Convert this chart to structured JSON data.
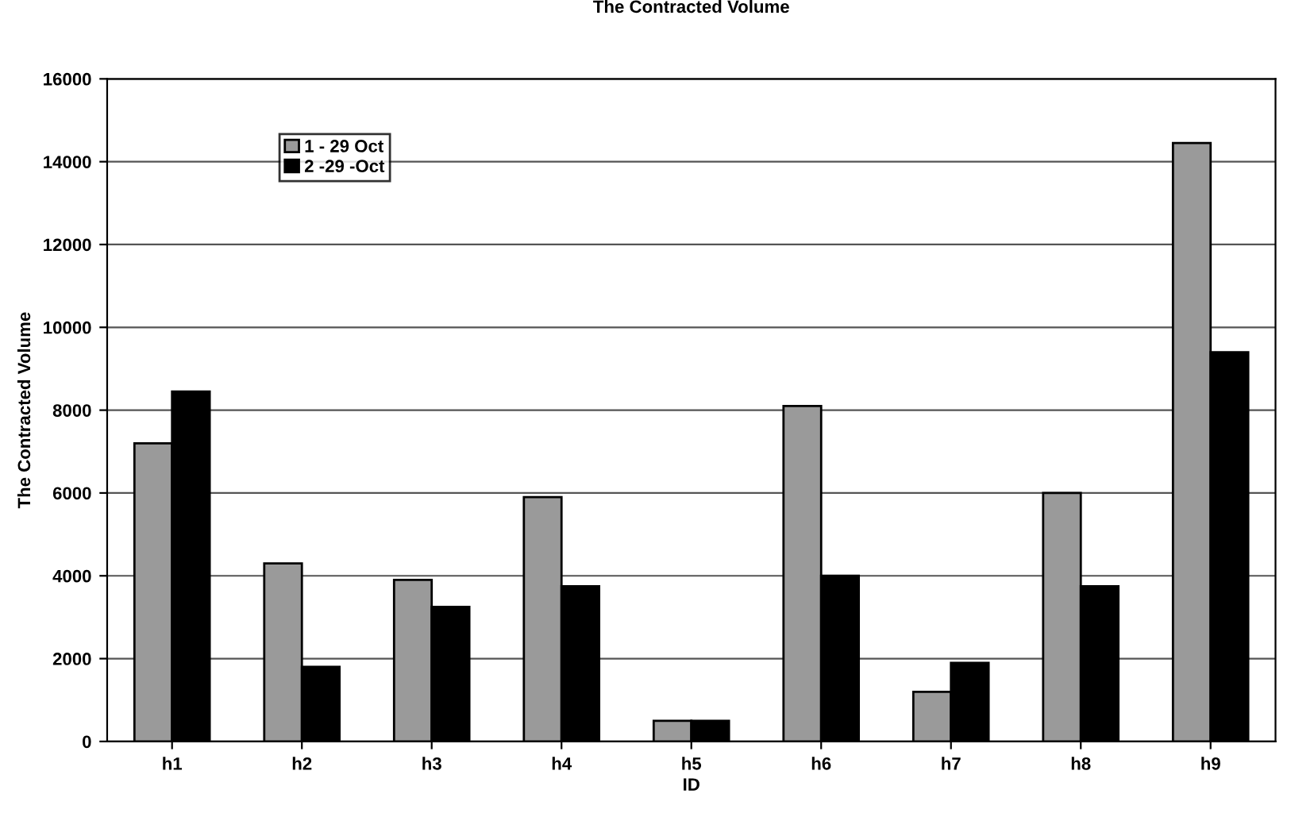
{
  "chart_data": {
    "type": "bar",
    "title": "The Contracted Volume",
    "xlabel": "ID",
    "ylabel": "The Contracted Volume",
    "categories": [
      "h1",
      "h2",
      "h3",
      "h4",
      "h5",
      "h6",
      "h7",
      "h8",
      "h9"
    ],
    "series": [
      {
        "name": "1 - 29 Oct",
        "color": "#9a9a9a",
        "values": [
          7200,
          4300,
          3900,
          5900,
          500,
          8100,
          1200,
          6000,
          14450
        ]
      },
      {
        "name": "2 -29 -Oct",
        "color": "#000000",
        "values": [
          8450,
          1800,
          3250,
          3750,
          500,
          4000,
          1900,
          3750,
          9400
        ]
      }
    ],
    "ylim": [
      0,
      16000
    ],
    "yticks": [
      0,
      2000,
      4000,
      6000,
      8000,
      10000,
      12000,
      14000,
      16000
    ],
    "grid": "y",
    "legend": "top left"
  }
}
